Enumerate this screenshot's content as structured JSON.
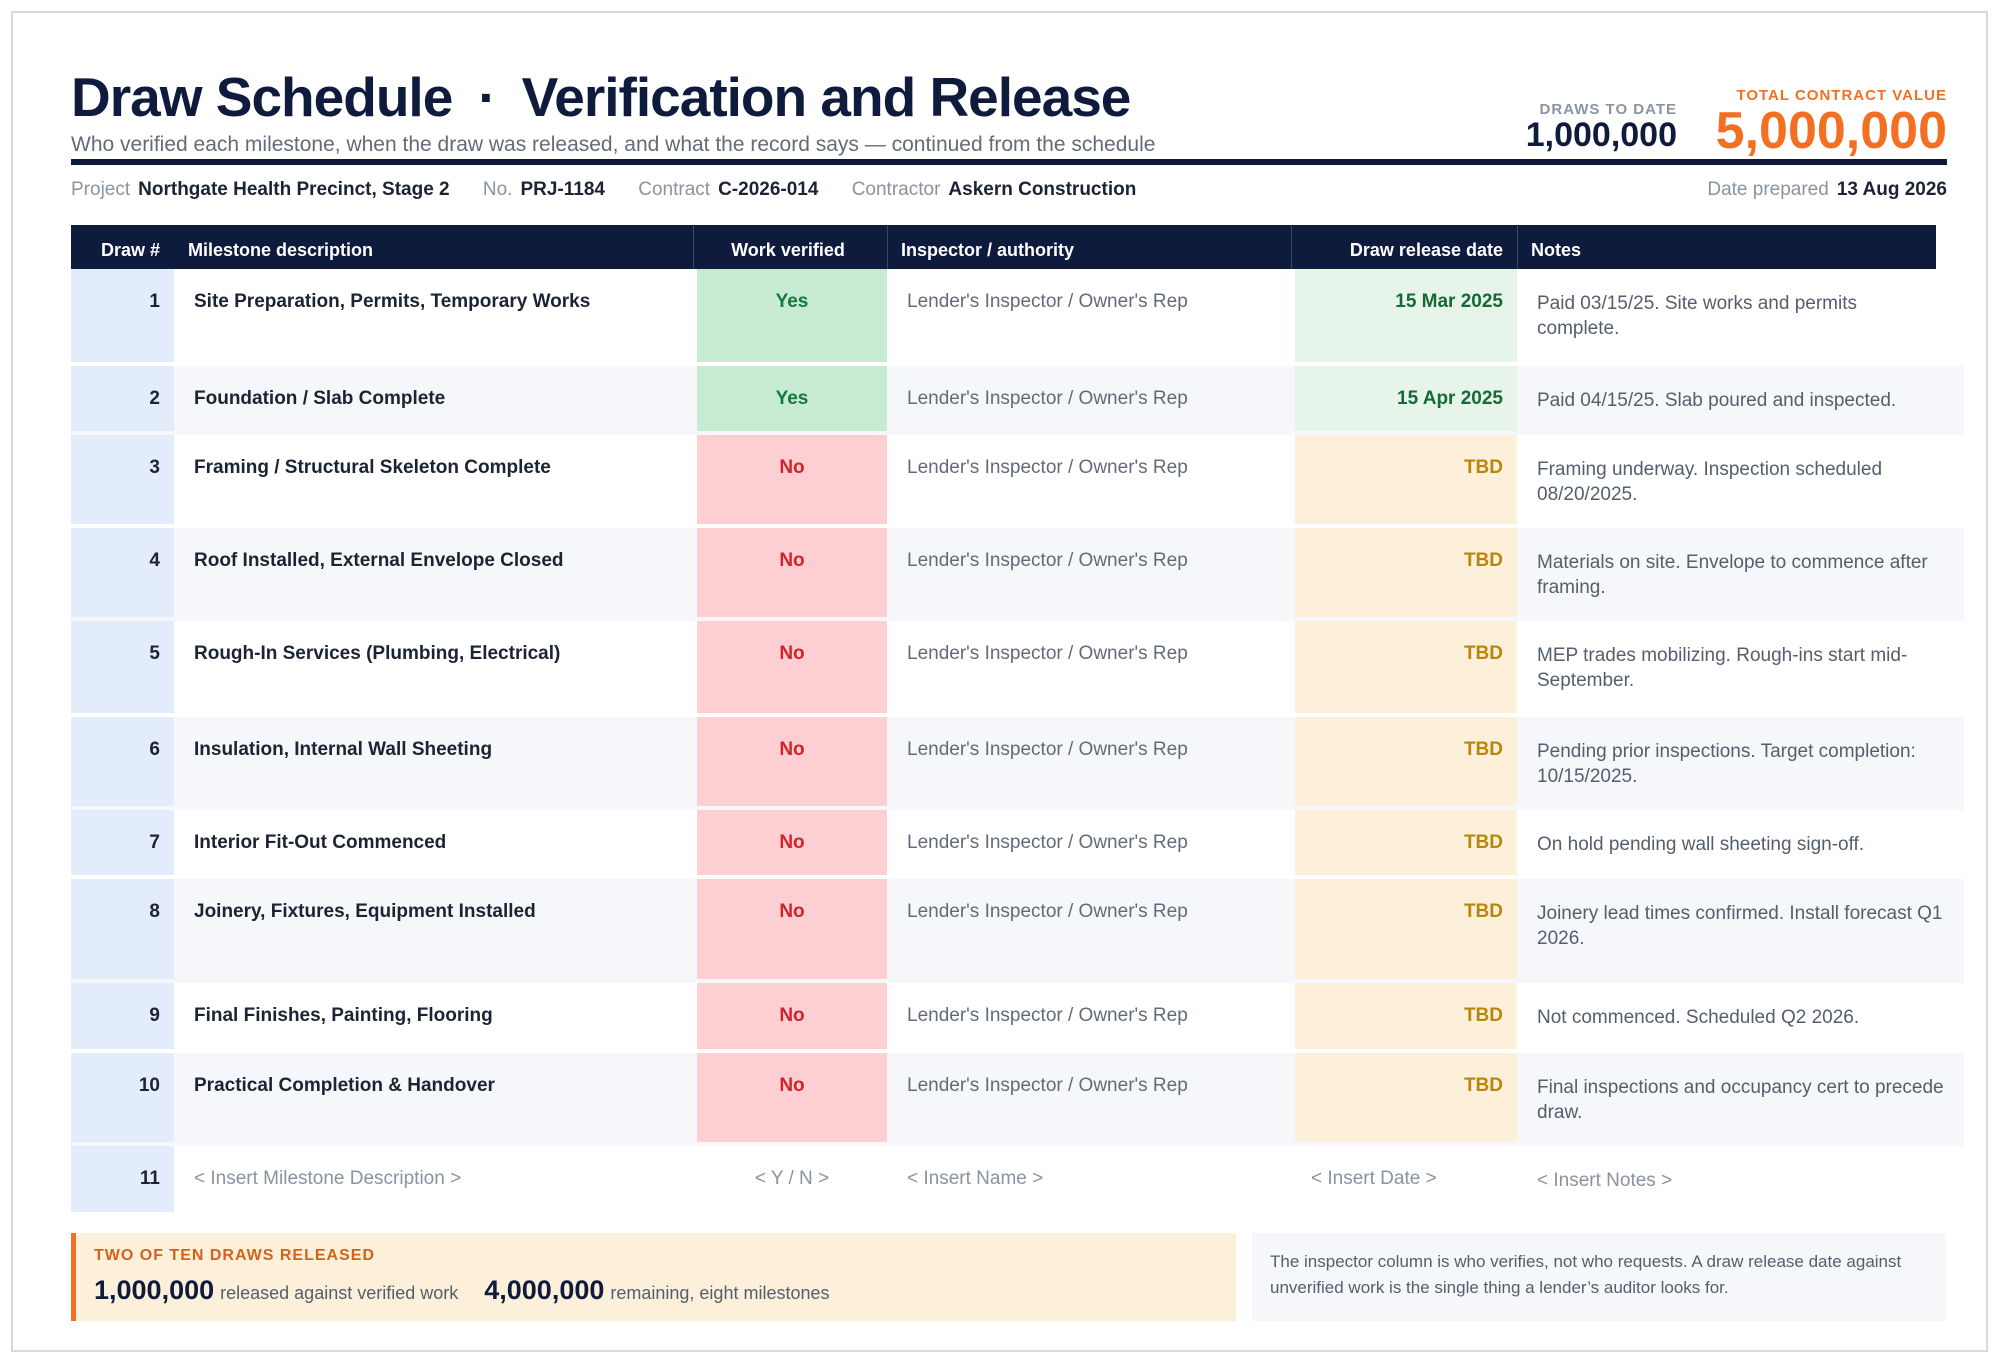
{
  "header": {
    "title_part1": "Draw Schedule",
    "title_separator": "·",
    "title_part2": "Verification and Release",
    "subtitle": "Who verified each milestone, when the draw was released, and what the record says — continued from the schedule",
    "kpis": {
      "draws_to_date_label": "DRAWS TO DATE",
      "draws_to_date_value": "1,000,000",
      "total_contract_label": "TOTAL CONTRACT VALUE",
      "total_contract_value": "5,000,000"
    }
  },
  "meta": {
    "project_label": "Project",
    "project_value": "Northgate Health Precinct, Stage 2",
    "no_label": "No.",
    "no_value": "PRJ-1184",
    "contract_label": "Contract",
    "contract_value": "C-2026-014",
    "contractor_label": "Contractor",
    "contractor_value": "Askern Construction",
    "date_label": "Date prepared",
    "date_value": "13 Aug 2026"
  },
  "table": {
    "headers": {
      "draw": "Draw #",
      "milestone": "Milestone description",
      "verified": "Work verified",
      "inspector": "Inspector / authority",
      "release": "Draw release date",
      "notes": "Notes"
    },
    "rows": [
      {
        "num": "1",
        "desc": "Site Preparation, Permits, Temporary Works",
        "verified": "Yes",
        "inspector": "Lender's Inspector / Owner's Rep",
        "date": "15 Mar 2025",
        "notes": "Paid 03/15/25. Site works and permits complete."
      },
      {
        "num": "2",
        "desc": "Foundation / Slab Complete",
        "verified": "Yes",
        "inspector": "Lender's Inspector / Owner's Rep",
        "date": "15 Apr 2025",
        "notes": "Paid 04/15/25. Slab poured and inspected."
      },
      {
        "num": "3",
        "desc": "Framing / Structural Skeleton Complete",
        "verified": "No",
        "inspector": "Lender's Inspector / Owner's Rep",
        "date": "TBD",
        "notes": "Framing underway. Inspection scheduled 08/20/2025."
      },
      {
        "num": "4",
        "desc": "Roof Installed, External Envelope Closed",
        "verified": "No",
        "inspector": "Lender's Inspector / Owner's Rep",
        "date": "TBD",
        "notes": "Materials on site. Envelope to commence after framing."
      },
      {
        "num": "5",
        "desc": "Rough-In Services (Plumbing, Electrical)",
        "verified": "No",
        "inspector": "Lender's Inspector / Owner's Rep",
        "date": "TBD",
        "notes": "MEP trades mobilizing. Rough-ins start mid-September."
      },
      {
        "num": "6",
        "desc": "Insulation, Internal Wall Sheeting",
        "verified": "No",
        "inspector": "Lender's Inspector / Owner's Rep",
        "date": "TBD",
        "notes": "Pending prior inspections. Target completion: 10/15/2025."
      },
      {
        "num": "7",
        "desc": "Interior Fit-Out Commenced",
        "verified": "No",
        "inspector": "Lender's Inspector / Owner's Rep",
        "date": "TBD",
        "notes": "On hold pending wall sheeting sign-off."
      },
      {
        "num": "8",
        "desc": "Joinery, Fixtures, Equipment Installed",
        "verified": "No",
        "inspector": "Lender's Inspector / Owner's Rep",
        "date": "TBD",
        "notes": "Joinery lead times confirmed. Install forecast Q1 2026."
      },
      {
        "num": "9",
        "desc": "Final Finishes, Painting, Flooring",
        "verified": "No",
        "inspector": "Lender's Inspector / Owner's Rep",
        "date": "TBD",
        "notes": "Not commenced. Scheduled Q2 2026."
      },
      {
        "num": "10",
        "desc": "Practical Completion & Handover",
        "verified": "No",
        "inspector": "Lender's Inspector / Owner's Rep",
        "date": "TBD",
        "notes": "Final inspections and occupancy cert to precede draw."
      }
    ],
    "template_row": {
      "num": "11",
      "desc": "< Insert Milestone Description >",
      "verified": "< Y / N >",
      "inspector": "< Insert Name >",
      "date": "< Insert Date >",
      "notes": "< Insert Notes >"
    }
  },
  "summary": {
    "label": "TWO OF TEN DRAWS RELEASED",
    "released_value": "1,000,000",
    "released_caption": "released against verified work",
    "remaining_value": "4,000,000",
    "remaining_caption": "remaining, eight milestones"
  },
  "footnote": "The inspector column is who verifies, not who requests. A draw release date against unverified work is the single thing a lender’s auditor looks for.",
  "colors": {
    "navy": "#0f1b3d",
    "accent_orange": "#f36f21",
    "verified_yes_bg": "#c6ead2",
    "verified_no_bg": "#fdcfd3",
    "date_done_bg": "#e6f4ea",
    "date_tbd_bg": "#fdf0db"
  }
}
